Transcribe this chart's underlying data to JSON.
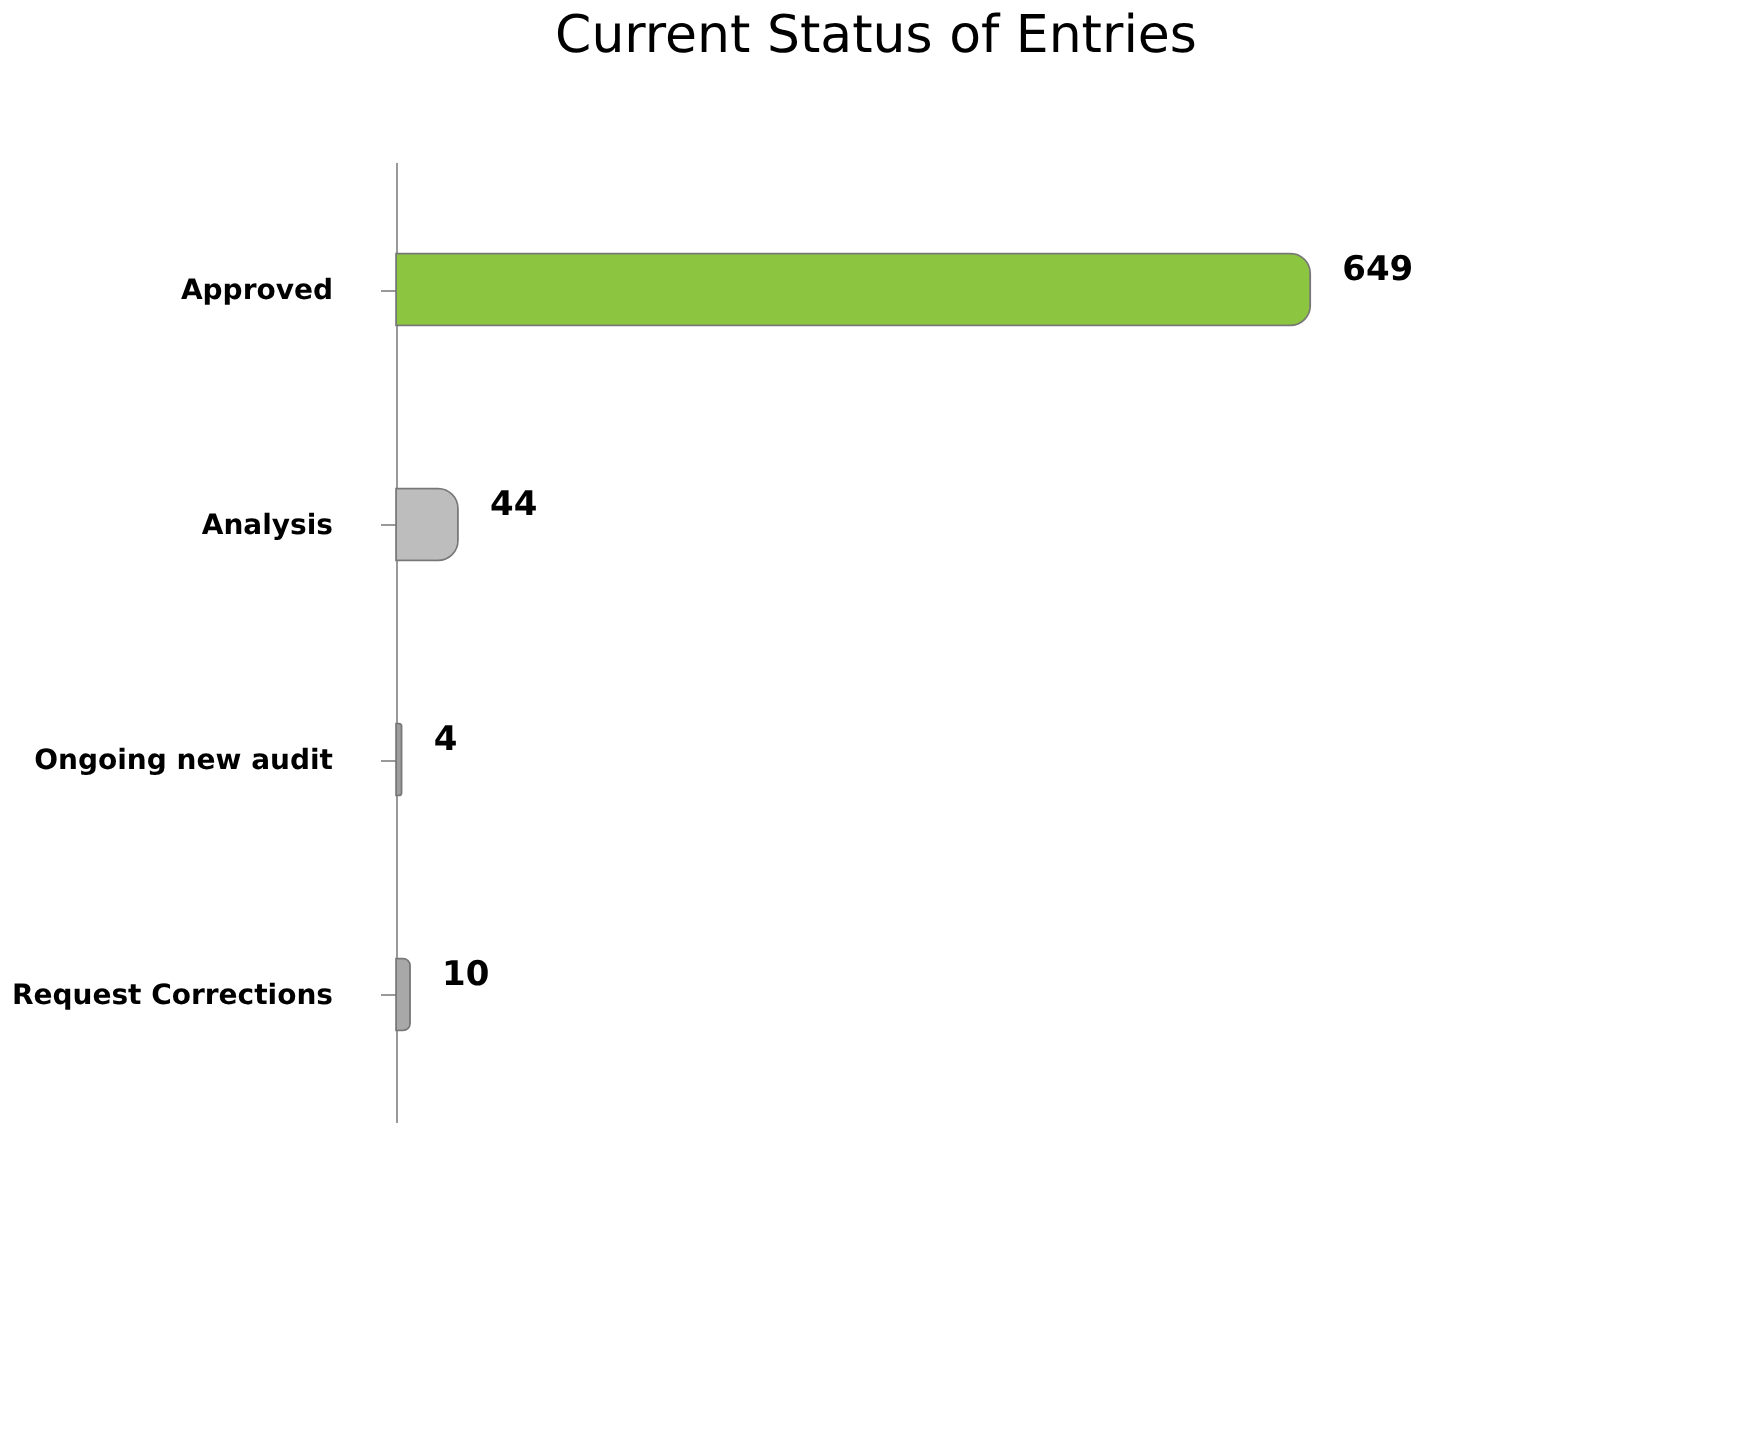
{
  "chart_data": {
    "type": "bar",
    "title": "Current Status of Entries",
    "orientation": "horizontal",
    "categories": [
      "Approved",
      "Analysis",
      "Ongoing new audit",
      "Request Corrections"
    ],
    "values": [
      649,
      44,
      4,
      10
    ],
    "colors": [
      "#8cc540",
      "#bdbdbd",
      "#9e9e9e",
      "#a8a8a8"
    ],
    "data_labels": true,
    "tick_labels": "y",
    "grid": false
  }
}
